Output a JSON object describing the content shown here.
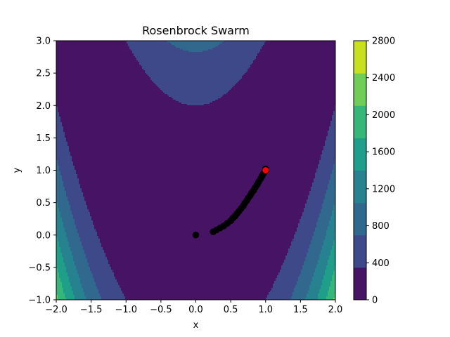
{
  "chart_data": {
    "type": "scatter",
    "subtype": "filled-contour",
    "title": "Rosenbrock Swarm",
    "xlabel": "x",
    "ylabel": "y",
    "xlim": [
      -2.0,
      2.0
    ],
    "ylim": [
      -1.0,
      3.0
    ],
    "x_ticks": [
      -2.0,
      -1.5,
      -1.0,
      -0.5,
      0.0,
      0.5,
      1.0,
      1.5,
      2.0
    ],
    "x_tick_labels": [
      "−2.0",
      "−1.5",
      "−1.0",
      "−0.5",
      "0.0",
      "0.5",
      "1.0",
      "1.5",
      "2.0"
    ],
    "y_ticks": [
      -1.0,
      -0.5,
      0.0,
      0.5,
      1.0,
      1.5,
      2.0,
      2.5,
      3.0
    ],
    "y_tick_labels": [
      "−1.0",
      "−0.5",
      "0.0",
      "0.5",
      "1.0",
      "1.5",
      "2.0",
      "2.5",
      "3.0"
    ],
    "grid": false,
    "contour": {
      "function": "rosenbrock",
      "levels": [
        0,
        400,
        800,
        1200,
        1600,
        2000,
        2400,
        2800
      ],
      "colors": [
        "#471365",
        "#3e4989",
        "#31688e",
        "#26828e",
        "#1f9e89",
        "#35b779",
        "#6ece58",
        "#c8e020"
      ]
    },
    "colorbar": {
      "ticks": [
        0,
        400,
        800,
        1200,
        1600,
        2000,
        2400,
        2800
      ],
      "tick_labels": [
        "0",
        "400",
        "800",
        "1200",
        "1600",
        "2000",
        "2400",
        "2800"
      ],
      "position": "right"
    },
    "series": [
      {
        "color": "#000000",
        "points": [
          [
            0.0,
            0.0
          ],
          [
            0.25,
            0.05
          ],
          [
            0.3,
            0.08
          ],
          [
            0.35,
            0.11
          ],
          [
            0.4,
            0.14
          ],
          [
            0.45,
            0.18
          ],
          [
            0.5,
            0.22
          ],
          [
            0.53,
            0.26
          ],
          [
            0.56,
            0.29
          ],
          [
            0.59,
            0.33
          ],
          [
            0.62,
            0.37
          ],
          [
            0.65,
            0.41
          ],
          [
            0.68,
            0.45
          ],
          [
            0.7,
            0.49
          ],
          [
            0.73,
            0.53
          ],
          [
            0.75,
            0.57
          ],
          [
            0.78,
            0.61
          ],
          [
            0.8,
            0.65
          ],
          [
            0.83,
            0.69
          ],
          [
            0.85,
            0.73
          ],
          [
            0.88,
            0.78
          ],
          [
            0.9,
            0.82
          ],
          [
            0.93,
            0.87
          ],
          [
            0.95,
            0.91
          ],
          [
            0.97,
            0.95
          ],
          [
            0.99,
            0.99
          ],
          [
            1.0,
            1.02
          ]
        ]
      },
      {
        "color": "#ff0000",
        "points": [
          [
            1.0,
            1.0
          ]
        ]
      }
    ]
  }
}
